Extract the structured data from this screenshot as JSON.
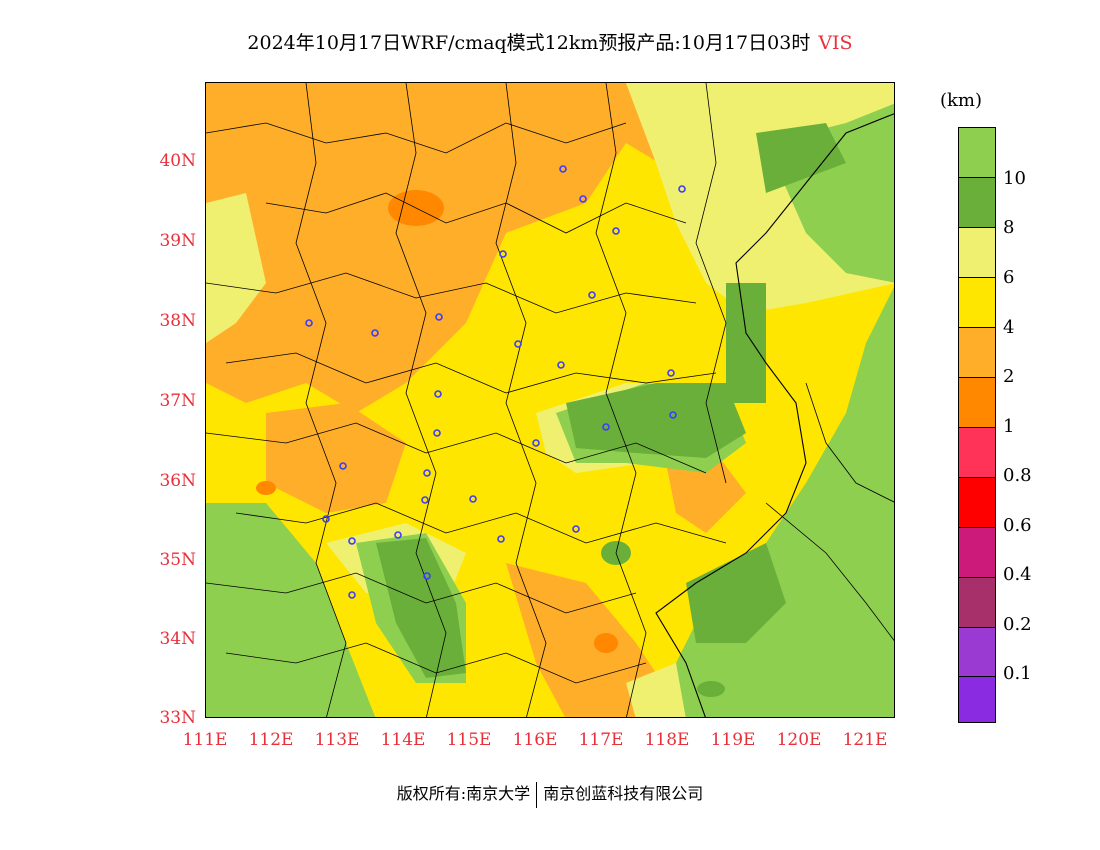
{
  "title": {
    "text": "2024年10月17日WRF/cmaq模式12km预报产品:10月17日03时",
    "variable": "VIS"
  },
  "colors": {
    "accent_red": "#e8303a",
    "city_marker": "#3c3cff",
    "border": "#000000"
  },
  "axes": {
    "y_labels": [
      "40N",
      "39N",
      "38N",
      "37N",
      "36N",
      "35N",
      "34N",
      "33N"
    ],
    "x_labels": [
      "111E",
      "112E",
      "113E",
      "114E",
      "115E",
      "116E",
      "117E",
      "118E",
      "119E",
      "120E",
      "121E"
    ]
  },
  "colorbar": {
    "unit": "(km)",
    "levels": [
      "10",
      "8",
      "6",
      "4",
      "2",
      "1",
      "0.8",
      "0.6",
      "0.4",
      "0.2",
      "0.1"
    ],
    "colors_top_to_bottom": [
      "#8ecf50",
      "#6aaf3a",
      "#f0f070",
      "#ffe600",
      "#ffae2a",
      "#ff8800",
      "#ff3358",
      "#ff0000",
      "#cc1a7a",
      "#a8306a",
      "#9b3ad2",
      "#8a2be2"
    ]
  },
  "footer": {
    "left": "版权所有:南京大学",
    "right": "南京创蓝科技有限公司"
  }
}
